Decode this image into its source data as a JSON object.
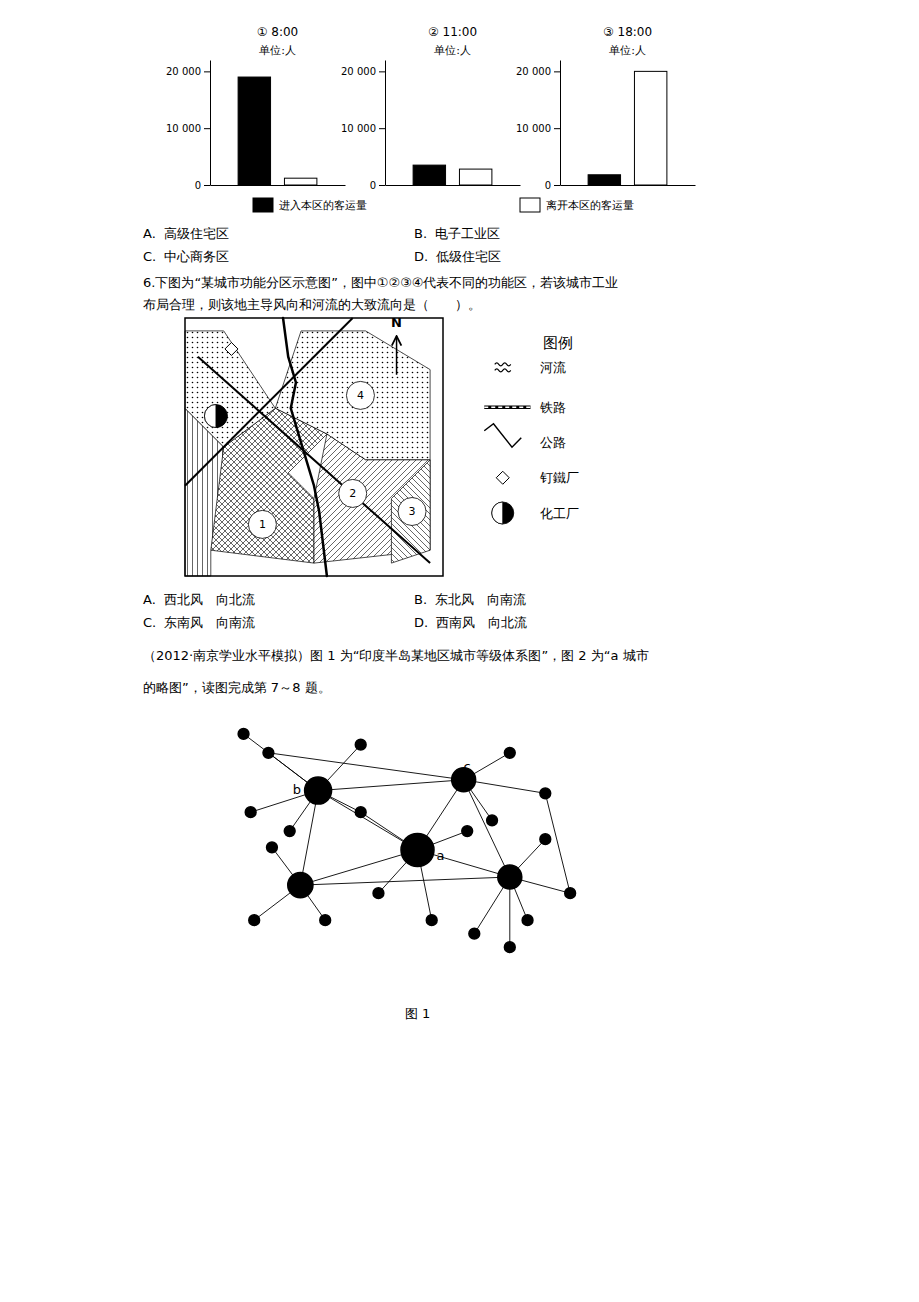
{
  "chart_data": [
    {
      "type": "bar",
      "title": "① 8:00",
      "subtitle": "单位:人",
      "categories": [
        null
      ],
      "series": [
        {
          "name": "进入本区的客运量",
          "color": "#000000",
          "values": [
            19000
          ]
        },
        {
          "name": "离开本区的客运量",
          "color": "#ffffff",
          "values": [
            1200
          ]
        }
      ],
      "ylim": [
        0,
        22000
      ],
      "yticks": [
        0,
        {
          "value": 10000,
          "label": "10 000"
        },
        {
          "value": 20000,
          "label": "20 000"
        }
      ],
      "annotations": [
        "A.  高级住宅区",
        "B.  电子工业区",
        "C.  中心商务区",
        "D.  低级住宅区"
      ]
    },
    {
      "type": "bar",
      "title": "② 11:00",
      "subtitle": "单位:人",
      "categories": [
        null
      ],
      "series": [
        {
          "color": "#000000",
          "values": [
            3500
          ]
        },
        {
          "color": "#ffffff",
          "values": [
            2800
          ]
        }
      ],
      "ylim": [
        0,
        22000
      ],
      "yticks": [
        0,
        {
          "value": 10000,
          "label": "10 000"
        },
        {
          "value": 20000,
          "label": "20 000"
        }
      ]
    },
    {
      "type": "bar",
      "title": "③ 18:00",
      "subtitle": "单位:人",
      "categories": [
        null
      ],
      "series": [
        {
          "color": "#000000",
          "values": [
            1800
          ]
        },
        {
          "color": "#ffffff",
          "values": [
            20000
          ]
        }
      ],
      "ylim": [
        0,
        22000
      ],
      "yticks": [
        0,
        {
          "value": 10000,
          "label": "10 000"
        },
        {
          "value": 20000,
          "label": "20 000"
        }
      ]
    },
    {
      "type": "map",
      "title": "图例",
      "categories": [
        "河流",
        "铁路",
        "公路",
        "钉鐵厂",
        "化工厂"
      ],
      "annotations": [
        "1",
        "2",
        "3",
        "4",
        "N",
        "6.下图为“某城市功能分区示意图”，图中①②③④代表不同的功能区，若该城市工业",
        "布局合理，则该地主导风向和河流的大致流向是（　　）。",
        "A.  西北风　向北流",
        "B.  东北风　向南流",
        "C.  东南风　向南流",
        "D.  西南风　向北流"
      ]
    },
    {
      "type": "network",
      "title": "图 1",
      "annotations": [
        "a",
        "b",
        "c",
        "（2012·南京学业水平模拟）图 1 为“印度半岛某地区城市等级体系图”，图 2 为“a 城市",
        "的略图”，读图完成第 7～8 题。"
      ]
    }
  ]
}
